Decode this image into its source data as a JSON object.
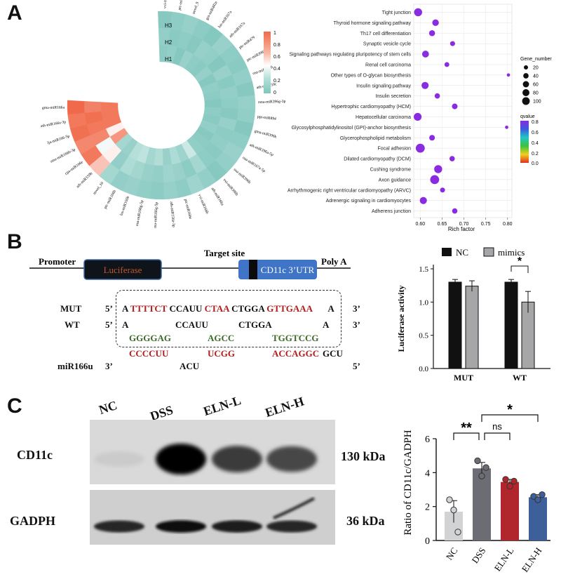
{
  "panels": {
    "a": "A",
    "b": "B",
    "c": "C"
  },
  "heatmap": {
    "rings": [
      "H3",
      "H2",
      "H1"
    ],
    "colorbar_ticks": [
      "1",
      "0.8",
      "0.6",
      "0.4",
      "0.2",
      "0"
    ],
    "colors": {
      "low": "#7fc6bd",
      "mid": "#ffffff",
      "high": "#f06a4a"
    },
    "mirnas": [
      "vvi-miR396a",
      "ptc-miR396",
      "novel_9",
      "gra-miR482e",
      "lus-miR167a",
      "ath-miR167a",
      "ptc-miR479",
      "ptc-miR396f",
      "osa-miR398b",
      "ath-miR159c",
      "zma-miR396g-3p",
      "ppt-miR894",
      "gma-miR396k",
      "ath-miR396a-5p",
      "osa-miR167a-5p",
      "osa-miR396h",
      "vvi-miR396b",
      "ath-miR166a",
      "vvi-miR166b",
      "ptc-miR166e",
      "ath-miR156a-3p",
      "ma-miR166g-5p",
      "osa-miR166g-5p",
      "lus-miR166b",
      "ptc-miR166b",
      "novel_10",
      "ath-miR159b",
      "cpa-miR166e",
      "zma-miR166b-3p",
      "lja-miR166-5p",
      "ath-miR166a-3p",
      "gma-miR166a"
    ]
  },
  "enrichment": {
    "pathways": [
      "Tight junction",
      "Thyroid hormone signaling pathway",
      "Th17 cell differentiation",
      "Synaptic vesicle cycle",
      "Signaling pathways regulating pluripotency of stem cells",
      "Renal cell carcinoma",
      "Other types of O-glycan biosynthesis",
      "Insulin signaling pathway",
      "Insulin secretion",
      "Hypertrophic cardiomyopathy (HCM)",
      "Hepatocellular carcinoma",
      "Glycosylphosphatidylinositol (GPI)-anchor biosynthesis",
      "Glycerophospholipid metabolism",
      "Focal adhesion",
      "Dilated cardiomyopathy (DCM)",
      "Cushing syndrome",
      "Axon guidance",
      "Arrhythmogenic right ventricular cardiomyopathy (ARVC)",
      "Adrenergic signaling in cardiomyocytes",
      "Adherens junction"
    ],
    "rich_factor": [
      0.595,
      0.635,
      0.627,
      0.674,
      0.612,
      0.661,
      0.802,
      0.611,
      0.639,
      0.679,
      0.594,
      0.798,
      0.627,
      0.6,
      0.673,
      0.641,
      0.633,
      0.651,
      0.607,
      0.679
    ],
    "gene_number": [
      75,
      45,
      35,
      20,
      50,
      18,
      5,
      55,
      25,
      30,
      70,
      5,
      30,
      100,
      25,
      75,
      100,
      20,
      55,
      25
    ],
    "qvalue": [
      0.8,
      0.8,
      0.8,
      0.8,
      0.8,
      0.8,
      0.8,
      0.8,
      0.8,
      0.8,
      0.8,
      0.8,
      0.8,
      0.8,
      0.8,
      0.8,
      0.8,
      0.8,
      0.8,
      0.8
    ],
    "x_ticks": [
      "0.60",
      "0.65",
      "0.70",
      "0.75",
      "0.80"
    ],
    "xlabel": "Rich factor",
    "legend_size_title": "Gene_number",
    "legend_sizes": [
      "20",
      "40",
      "60",
      "80",
      "100"
    ],
    "legend_color_title": "qvalue",
    "legend_color_ticks": [
      "0.8",
      "0.6",
      "0.4",
      "0.2",
      "0.0"
    ]
  },
  "construct": {
    "promoter": "Promoter",
    "luciferase": "Luciferase",
    "target_site": "Target site",
    "utr": "CD11c 3’UTR",
    "polya": "Poly A"
  },
  "alignment": {
    "mut_label": "MUT",
    "wt_label": "WT",
    "mir_label": "miR166u",
    "five": "5’",
    "three": "3’",
    "mut_a1": "A",
    "mut_r1": "TTTTCT",
    "mut_b1": "CCAUU",
    "mut_r2": "CTAA",
    "mut_b2": "CTGGA",
    "mut_r3": "GTTGAAA",
    "mut_a2": "A",
    "wt_a1": "A",
    "wt_b1": "CCAUU",
    "wt_b2": "CTGGA",
    "wt_a2": "A",
    "g1": "GGGGAG",
    "g2": "AGCC",
    "g3": "TGGTCCG",
    "mir_r1": "CCCCUU",
    "mir_r2": "UCGG",
    "mir_r3": "ACCAGGC",
    "mir_b1": "ACU",
    "mir_b2": "GCU"
  },
  "chart_data": [
    {
      "type": "heatmap",
      "title": "",
      "rows": [
        "H1",
        "H2",
        "H3"
      ],
      "columns": [
        "vvi-miR396a",
        "ptc-miR396",
        "novel_9",
        "gra-miR482e",
        "lus-miR167a",
        "ath-miR167a",
        "ptc-miR479",
        "ptc-miR396f",
        "osa-miR398b",
        "ath-miR159c",
        "zma-miR396g-3p",
        "ppt-miR894",
        "gma-miR396k",
        "ath-miR396a-5p",
        "osa-miR167a-5p",
        "osa-miR396h",
        "vvi-miR396b",
        "ath-miR166a",
        "vvi-miR166b",
        "ptc-miR166e",
        "ath-miR156a-3p",
        "ma-miR166g-5p",
        "osa-miR166g-5p",
        "lus-miR166b",
        "ptc-miR166b",
        "novel_10",
        "ath-miR159b",
        "cpa-miR166e",
        "zma-miR166b-3p",
        "lja-miR166-5p",
        "ath-miR166a-3p",
        "gma-miR166a"
      ],
      "values": [
        [
          0.05,
          0.08,
          0.02,
          0.1,
          0.06,
          0.04,
          0.09,
          0.03,
          0.07,
          0.05,
          0.02,
          0.06,
          0.04,
          0.08,
          0.03,
          0.05,
          0.07,
          0.3,
          0.12,
          0.18,
          0.1,
          0.2,
          0.15,
          0.25,
          0.22,
          0.1,
          0.15,
          0.85,
          0.55,
          0.95,
          0.95,
          0.95
        ],
        [
          0.08,
          0.04,
          0.06,
          0.03,
          0.09,
          0.07,
          0.02,
          0.1,
          0.04,
          0.08,
          0.06,
          0.03,
          0.09,
          0.05,
          0.07,
          0.04,
          0.06,
          0.15,
          0.05,
          0.1,
          0.12,
          0.08,
          0.1,
          0.14,
          0.18,
          0.08,
          0.55,
          0.45,
          0.9,
          0.95,
          0.98,
          0.92
        ],
        [
          0.03,
          0.06,
          0.09,
          0.05,
          0.02,
          0.1,
          0.06,
          0.04,
          0.08,
          0.03,
          0.09,
          0.07,
          0.02,
          0.06,
          0.1,
          0.08,
          0.03,
          0.08,
          0.12,
          0.06,
          0.09,
          0.05,
          0.07,
          0.1,
          0.08,
          0.15,
          0.7,
          0.95,
          0.9,
          0.98,
          0.95,
          1.0
        ]
      ],
      "color_range": [
        0,
        1
      ]
    },
    {
      "type": "scatter",
      "title": "",
      "xlabel": "Rich factor",
      "ylabel": "",
      "xlim": [
        0.585,
        0.81
      ],
      "categories": [
        "Tight junction",
        "Thyroid hormone signaling pathway",
        "Th17 cell differentiation",
        "Synaptic vesicle cycle",
        "Signaling pathways regulating pluripotency of stem cells",
        "Renal cell carcinoma",
        "Other types of O-glycan biosynthesis",
        "Insulin signaling pathway",
        "Insulin secretion",
        "Hypertrophic cardiomyopathy (HCM)",
        "Hepatocellular carcinoma",
        "Glycosylphosphatidylinositol (GPI)-anchor biosynthesis",
        "Glycerophospholipid metabolism",
        "Focal adhesion",
        "Dilated cardiomyopathy (DCM)",
        "Cushing syndrome",
        "Axon guidance",
        "Arrhythmogenic right ventricular cardiomyopathy (ARVC)",
        "Adrenergic signaling in cardiomyocytes",
        "Adherens junction"
      ],
      "x": [
        0.595,
        0.635,
        0.627,
        0.674,
        0.612,
        0.661,
        0.802,
        0.611,
        0.639,
        0.679,
        0.594,
        0.798,
        0.627,
        0.6,
        0.673,
        0.641,
        0.633,
        0.651,
        0.607,
        0.679
      ],
      "size": [
        75,
        45,
        35,
        20,
        50,
        18,
        5,
        55,
        25,
        30,
        70,
        5,
        30,
        100,
        25,
        75,
        100,
        20,
        55,
        25
      ],
      "color": [
        0.8,
        0.8,
        0.8,
        0.8,
        0.8,
        0.8,
        0.8,
        0.8,
        0.8,
        0.8,
        0.8,
        0.8,
        0.8,
        0.8,
        0.8,
        0.8,
        0.8,
        0.8,
        0.8,
        0.8
      ]
    },
    {
      "type": "bar",
      "title": "",
      "xlabel": "",
      "ylabel": "Luciferase activity",
      "categories": [
        "MUT",
        "WT"
      ],
      "series": [
        {
          "name": "NC",
          "values": [
            1.3,
            1.3
          ],
          "errors": [
            0.04,
            0.04
          ],
          "color": "#111111"
        },
        {
          "name": "mimics",
          "values": [
            1.24,
            1.0
          ],
          "errors": [
            0.08,
            0.16
          ],
          "color": "#a6a6a8"
        }
      ],
      "ylim": [
        0,
        1.5
      ],
      "yticks": [
        "0.0",
        "0.5",
        "1.0",
        "1.5"
      ],
      "annotation": "*"
    },
    {
      "type": "bar",
      "title": "",
      "xlabel": "",
      "ylabel": "Ratio of CD11c/GADPH",
      "categories": [
        "NC",
        "DSS",
        "ELN-L",
        "ELN-H"
      ],
      "values": [
        1.7,
        4.25,
        3.45,
        2.55
      ],
      "errors": [
        0.65,
        0.35,
        0.15,
        0.15
      ],
      "points": [
        [
          2.4,
          1.8,
          0.5
        ],
        [
          4.7,
          3.8,
          4.3
        ],
        [
          3.6,
          3.2,
          3.5
        ],
        [
          2.6,
          2.4,
          2.7
        ]
      ],
      "colors": [
        "#d2d3d4",
        "#6c6d74",
        "#b1262c",
        "#3d5f9a"
      ],
      "ylim": [
        0,
        6
      ],
      "yticks": [
        "0",
        "2",
        "4",
        "6"
      ],
      "significance": [
        {
          "from": "NC",
          "to": "DSS",
          "label": "**"
        },
        {
          "from": "DSS",
          "to": "ELN-L",
          "label": "ns"
        },
        {
          "from": "DSS",
          "to": "ELN-H",
          "label": "*"
        }
      ]
    }
  ],
  "blot": {
    "lanes": [
      "NC",
      "DSS",
      "ELN-L",
      "ELN-H"
    ],
    "band1_label": "CD11c",
    "band2_label": "GADPH",
    "band1_kda": "130 kDa",
    "band2_kda": "36 kDa",
    "band1_intensity": [
      0.08,
      1.0,
      0.75,
      0.7
    ],
    "band2_intensity": [
      0.85,
      0.95,
      0.9,
      0.85
    ]
  }
}
